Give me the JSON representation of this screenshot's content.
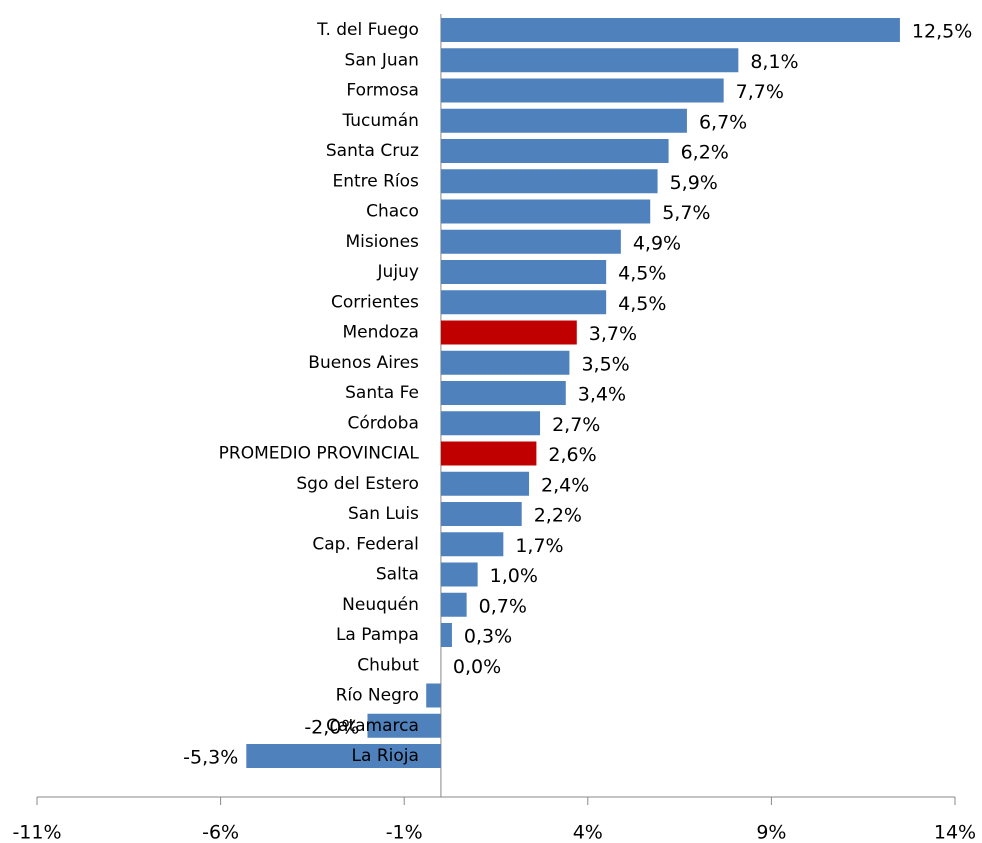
{
  "chart_data": {
    "type": "hbar",
    "categories": [
      "T. del Fuego",
      "San Juan",
      "Formosa",
      "Tucumán",
      "Santa Cruz",
      "Entre Ríos",
      "Chaco",
      "Misiones",
      "Jujuy",
      "Corrientes",
      "Mendoza",
      "Buenos Aires",
      "Santa Fe",
      "Córdoba",
      "PROMEDIO PROVINCIAL",
      "Sgo del Estero",
      "San Luis",
      "Cap. Federal",
      "Salta",
      "Neuquén",
      "La Pampa",
      "Chubut",
      "Río Negro",
      "Catamarca",
      "La Rioja"
    ],
    "values": [
      12.5,
      8.1,
      7.7,
      6.7,
      6.2,
      5.9,
      5.7,
      4.9,
      4.5,
      4.5,
      3.7,
      3.5,
      3.4,
      2.7,
      2.6,
      2.4,
      2.2,
      1.7,
      1.0,
      0.7,
      0.3,
      0.0,
      -0.4,
      -2.0,
      -5.3
    ],
    "value_labels": [
      "12,5%",
      "8,1%",
      "7,7%",
      "6,7%",
      "6,2%",
      "5,9%",
      "5,7%",
      "4,9%",
      "4,5%",
      "4,5%",
      "3,7%",
      "3,5%",
      "3,4%",
      "2,7%",
      "2,6%",
      "2,4%",
      "2,2%",
      "1,7%",
      "1,0%",
      "0,7%",
      "0,3%",
      "0,0%",
      null,
      "-2,0%",
      "-5,3%"
    ],
    "colors": [
      "#4f81bd",
      "#4f81bd",
      "#4f81bd",
      "#4f81bd",
      "#4f81bd",
      "#4f81bd",
      "#4f81bd",
      "#4f81bd",
      "#4f81bd",
      "#4f81bd",
      "#c00000",
      "#4f81bd",
      "#4f81bd",
      "#4f81bd",
      "#c00000",
      "#4f81bd",
      "#4f81bd",
      "#4f81bd",
      "#4f81bd",
      "#4f81bd",
      "#4f81bd",
      "#4f81bd",
      "#4f81bd",
      "#4f81bd",
      "#4f81bd"
    ],
    "xlim": [
      -11,
      14
    ],
    "xticks": [
      {
        "value": -11,
        "label": "-11%"
      },
      {
        "value": -6,
        "label": "-6%"
      },
      {
        "value": -1,
        "label": "-1%"
      },
      {
        "value": 4,
        "label": "4%"
      },
      {
        "value": 9,
        "label": "9%"
      },
      {
        "value": 14,
        "label": "14%"
      }
    ]
  }
}
